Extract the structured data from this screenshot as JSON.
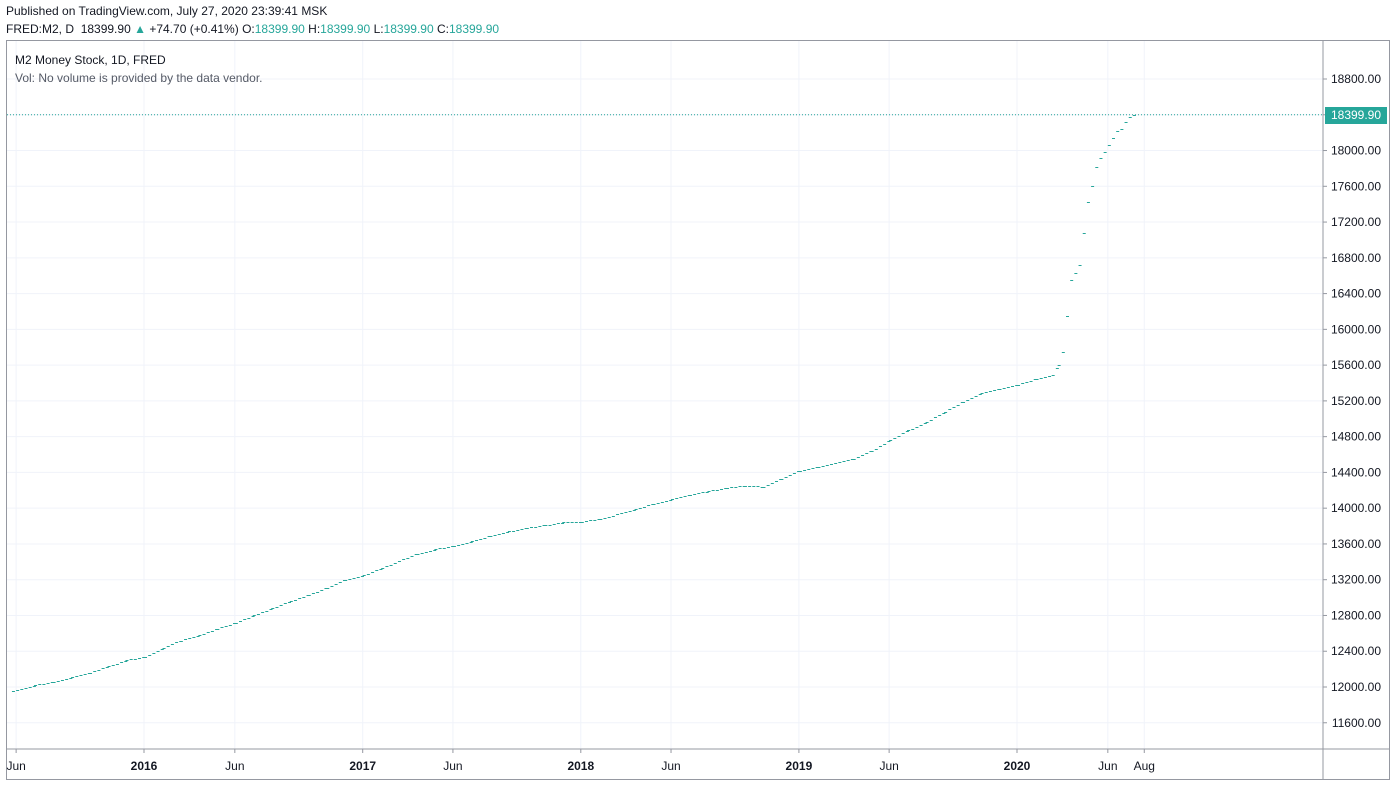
{
  "header": {
    "published": "Published on TradingView.com, July 27, 2020 23:39:41 MSK",
    "symbol": "FRED:M2, D",
    "last": "18399.90",
    "change_arrow": "▲",
    "change": "+74.70 (+0.41%)",
    "o_label": "O:",
    "o_value": "18399.90",
    "h_label": "H:",
    "h_value": "18399.90",
    "l_label": "L:",
    "l_value": "18399.90",
    "c_label": "C:",
    "c_value": "18399.90"
  },
  "legend": {
    "title": "M2 Money Stock, 1D, FRED",
    "volume_note": "Vol: No volume is provided by the data vendor."
  },
  "price_tag": "18399.90",
  "colors": {
    "series": "#26a69a",
    "grid": "#f0f3fa",
    "axis": "#9598a1",
    "text": "#131722"
  },
  "chart_data": {
    "type": "line",
    "style": "weekly step markers (dashes)",
    "title": "M2 Money Stock, 1D, FRED",
    "ylim": [
      11200,
      19200
    ],
    "xlim": [
      "2015-06-01",
      "2020-10-31"
    ],
    "y_ticks": [
      11600,
      12000,
      12400,
      12800,
      13200,
      13600,
      14000,
      14400,
      14800,
      15200,
      15600,
      16000,
      16400,
      16800,
      17200,
      17600,
      18000,
      18400,
      18800
    ],
    "y_tick_labels": [
      "11600.00",
      "12000.00",
      "12400.00",
      "12800.00",
      "13200.00",
      "13600.00",
      "14000.00",
      "14400.00",
      "14800.00",
      "15200.00",
      "15600.00",
      "16000.00",
      "16400.00",
      "16800.00",
      "17200.00",
      "17600.00",
      "18000.00",
      "18400.00",
      "18800.00"
    ],
    "x_ticks": [
      {
        "date": "2015-06-01",
        "label": "Jun",
        "bold": false
      },
      {
        "date": "2016-01-01",
        "label": "2016",
        "bold": true
      },
      {
        "date": "2016-06-01",
        "label": "Jun",
        "bold": false
      },
      {
        "date": "2017-01-01",
        "label": "2017",
        "bold": true
      },
      {
        "date": "2017-06-01",
        "label": "Jun",
        "bold": false
      },
      {
        "date": "2018-01-01",
        "label": "2018",
        "bold": true
      },
      {
        "date": "2018-06-01",
        "label": "Jun",
        "bold": false
      },
      {
        "date": "2019-01-01",
        "label": "2019",
        "bold": true
      },
      {
        "date": "2019-06-01",
        "label": "Jun",
        "bold": false
      },
      {
        "date": "2020-01-01",
        "label": "2020",
        "bold": true
      },
      {
        "date": "2020-06-01",
        "label": "Jun",
        "bold": false
      },
      {
        "date": "2020-08-01",
        "label": "Aug",
        "bold": false
      }
    ],
    "last_value": 18399.9,
    "series": [
      {
        "points": [
          [
            "2015-05-25",
            11960
          ],
          [
            "2015-07-01",
            12020
          ],
          [
            "2015-08-01",
            12060
          ],
          [
            "2015-09-01",
            12110
          ],
          [
            "2015-10-01",
            12160
          ],
          [
            "2015-11-01",
            12230
          ],
          [
            "2015-12-01",
            12300
          ],
          [
            "2016-01-01",
            12340
          ],
          [
            "2016-02-01",
            12440
          ],
          [
            "2016-03-01",
            12520
          ],
          [
            "2016-04-01",
            12580
          ],
          [
            "2016-05-01",
            12650
          ],
          [
            "2016-06-01",
            12720
          ],
          [
            "2016-07-01",
            12800
          ],
          [
            "2016-08-01",
            12880
          ],
          [
            "2016-09-01",
            12960
          ],
          [
            "2016-10-01",
            13030
          ],
          [
            "2016-11-01",
            13110
          ],
          [
            "2016-12-01",
            13200
          ],
          [
            "2017-01-01",
            13250
          ],
          [
            "2017-02-01",
            13330
          ],
          [
            "2017-03-01",
            13410
          ],
          [
            "2017-04-01",
            13490
          ],
          [
            "2017-05-01",
            13540
          ],
          [
            "2017-06-01",
            13580
          ],
          [
            "2017-07-01",
            13630
          ],
          [
            "2017-08-01",
            13690
          ],
          [
            "2017-09-01",
            13740
          ],
          [
            "2017-10-01",
            13780
          ],
          [
            "2017-11-01",
            13810
          ],
          [
            "2017-12-01",
            13840
          ],
          [
            "2018-01-01",
            13850
          ],
          [
            "2018-02-01",
            13880
          ],
          [
            "2018-03-01",
            13930
          ],
          [
            "2018-04-01",
            13990
          ],
          [
            "2018-05-01",
            14050
          ],
          [
            "2018-06-01",
            14100
          ],
          [
            "2018-07-01",
            14150
          ],
          [
            "2018-08-01",
            14190
          ],
          [
            "2018-09-01",
            14230
          ],
          [
            "2018-10-01",
            14250
          ],
          [
            "2018-11-01",
            14240
          ],
          [
            "2018-12-01",
            14330
          ],
          [
            "2019-01-01",
            14420
          ],
          [
            "2019-02-01",
            14460
          ],
          [
            "2019-03-01",
            14500
          ],
          [
            "2019-04-01",
            14550
          ],
          [
            "2019-05-01",
            14640
          ],
          [
            "2019-06-01",
            14760
          ],
          [
            "2019-07-01",
            14870
          ],
          [
            "2019-08-01",
            14960
          ],
          [
            "2019-09-01",
            15080
          ],
          [
            "2019-10-01",
            15190
          ],
          [
            "2019-11-01",
            15290
          ],
          [
            "2019-12-01",
            15330
          ],
          [
            "2020-01-01",
            15380
          ],
          [
            "2020-02-01",
            15450
          ],
          [
            "2020-02-28",
            15490
          ],
          [
            "2020-03-09",
            15600
          ],
          [
            "2020-03-16",
            15750
          ],
          [
            "2020-03-23",
            16150
          ],
          [
            "2020-03-30",
            16550
          ],
          [
            "2020-04-06",
            16630
          ],
          [
            "2020-04-13",
            16720
          ],
          [
            "2020-04-20",
            17080
          ],
          [
            "2020-04-27",
            17420
          ],
          [
            "2020-05-04",
            17600
          ],
          [
            "2020-05-11",
            17820
          ],
          [
            "2020-05-18",
            17920
          ],
          [
            "2020-05-25",
            17980
          ],
          [
            "2020-06-01",
            18060
          ],
          [
            "2020-06-08",
            18140
          ],
          [
            "2020-06-15",
            18220
          ],
          [
            "2020-06-22",
            18240
          ],
          [
            "2020-06-29",
            18320
          ],
          [
            "2020-07-06",
            18380
          ],
          [
            "2020-07-13",
            18399.9
          ]
        ]
      }
    ]
  }
}
